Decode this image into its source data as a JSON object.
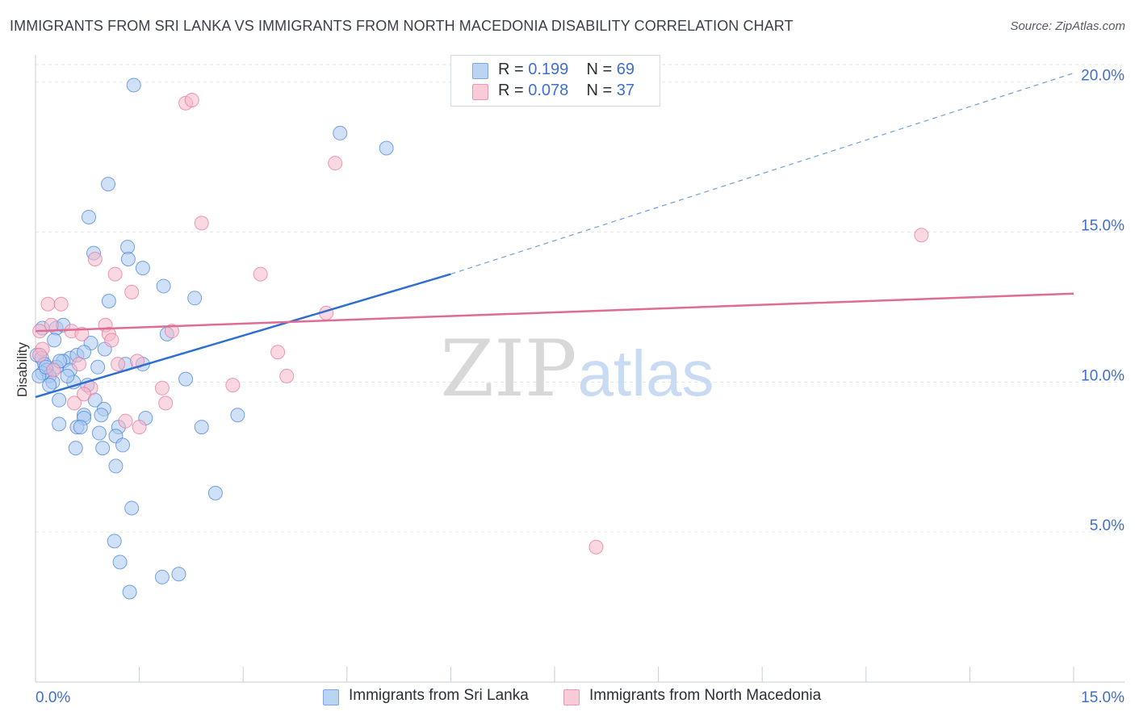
{
  "title": "IMMIGRANTS FROM SRI LANKA VS IMMIGRANTS FROM NORTH MACEDONIA DISABILITY CORRELATION CHART",
  "source": "Source: ZipAtlas.com",
  "watermark": {
    "zip": "ZIP",
    "atlas": "atlas"
  },
  "legend": {
    "rows": [
      {
        "r_label": "R = ",
        "r_value": "0.199",
        "n_label": "N = ",
        "n_value": "69",
        "color": "#a9c8f0"
      },
      {
        "r_label": "R = ",
        "r_value": "0.078",
        "n_label": "N = ",
        "n_value": "37",
        "color": "#f5b8cb"
      }
    ]
  },
  "bottom_legend": [
    {
      "label": "Immigrants from Sri Lanka",
      "color": "#a9c8f0"
    },
    {
      "label": "Immigrants from North Macedonia",
      "color": "#f5b8cb"
    }
  ],
  "chart_data": {
    "type": "scatter",
    "title": "IMMIGRANTS FROM SRI LANKA VS IMMIGRANTS FROM NORTH MACEDONIA DISABILITY CORRELATION CHART",
    "xlabel": "",
    "ylabel": "Disability",
    "xlim": [
      0,
      15
    ],
    "ylim": [
      0,
      20.8
    ],
    "x_tick_labels": [
      {
        "value": 0,
        "label": "0.0%"
      },
      {
        "value": 15,
        "label": "15.0%"
      }
    ],
    "y_tick_labels": [
      {
        "value": 5,
        "label": "5.0%"
      },
      {
        "value": 10,
        "label": "10.0%"
      },
      {
        "value": 15,
        "label": "15.0%"
      },
      {
        "value": 20,
        "label": "20.0%"
      }
    ],
    "x_minor_ticks": [
      0,
      1.5,
      3,
      4.5,
      6,
      7.5,
      9,
      10.5,
      12,
      13.5,
      15
    ],
    "grid": true,
    "legend_position": "top-center",
    "series": [
      {
        "name": "Immigrants from Sri Lanka",
        "color": "#4a86d8",
        "fill": "#a9c8f0",
        "points": [
          [
            1.42,
            19.9
          ],
          [
            4.4,
            18.3
          ],
          [
            5.07,
            17.8
          ],
          [
            1.05,
            16.6
          ],
          [
            0.77,
            15.5
          ],
          [
            0.84,
            14.3
          ],
          [
            1.33,
            14.5
          ],
          [
            1.34,
            14.1
          ],
          [
            1.55,
            13.8
          ],
          [
            1.85,
            13.2
          ],
          [
            2.3,
            12.8
          ],
          [
            1.06,
            12.7
          ],
          [
            0.1,
            11.8
          ],
          [
            0.3,
            11.8
          ],
          [
            0.4,
            11.9
          ],
          [
            1.9,
            11.6
          ],
          [
            0.27,
            11.4
          ],
          [
            0.8,
            11.3
          ],
          [
            1.0,
            11.1
          ],
          [
            0.02,
            10.9
          ],
          [
            0.09,
            10.8
          ],
          [
            0.5,
            10.8
          ],
          [
            0.6,
            10.9
          ],
          [
            0.4,
            10.7
          ],
          [
            0.13,
            10.6
          ],
          [
            1.3,
            10.6
          ],
          [
            1.55,
            10.6
          ],
          [
            0.9,
            10.5
          ],
          [
            0.16,
            10.4
          ],
          [
            0.3,
            10.5
          ],
          [
            0.5,
            10.4
          ],
          [
            0.1,
            10.3
          ],
          [
            0.2,
            10.2
          ],
          [
            0.05,
            10.2
          ],
          [
            2.17,
            10.1
          ],
          [
            0.25,
            10.0
          ],
          [
            0.55,
            10.0
          ],
          [
            0.75,
            9.9
          ],
          [
            0.2,
            9.9
          ],
          [
            0.34,
            9.4
          ],
          [
            0.86,
            9.4
          ],
          [
            0.99,
            9.1
          ],
          [
            0.7,
            8.9
          ],
          [
            0.95,
            8.9
          ],
          [
            0.7,
            8.8
          ],
          [
            1.59,
            8.8
          ],
          [
            2.92,
            8.9
          ],
          [
            0.34,
            8.6
          ],
          [
            0.6,
            8.5
          ],
          [
            0.65,
            8.5
          ],
          [
            1.2,
            8.5
          ],
          [
            2.4,
            8.5
          ],
          [
            0.92,
            8.3
          ],
          [
            1.16,
            8.2
          ],
          [
            0.58,
            7.8
          ],
          [
            0.97,
            7.8
          ],
          [
            1.26,
            7.9
          ],
          [
            1.16,
            7.2
          ],
          [
            2.6,
            6.3
          ],
          [
            1.39,
            5.8
          ],
          [
            1.14,
            4.7
          ],
          [
            1.22,
            4.0
          ],
          [
            1.36,
            3.0
          ],
          [
            1.83,
            3.5
          ],
          [
            2.07,
            3.6
          ],
          [
            0.35,
            10.7
          ],
          [
            0.7,
            11.0
          ],
          [
            0.46,
            10.2
          ],
          [
            0.15,
            10.5
          ]
        ],
        "trend": {
          "x0": 0,
          "y0": 9.5,
          "x1": 6.0,
          "y1": 13.6,
          "dash_x1": 15,
          "dash_y1": 20.3
        }
      },
      {
        "name": "Immigrants from North Macedonia",
        "color": "#e8779d",
        "fill": "#f5b8cb",
        "points": [
          [
            2.17,
            19.3
          ],
          [
            2.26,
            19.4
          ],
          [
            4.33,
            17.3
          ],
          [
            12.8,
            14.9
          ],
          [
            2.4,
            15.3
          ],
          [
            0.86,
            14.1
          ],
          [
            1.15,
            13.6
          ],
          [
            3.25,
            13.6
          ],
          [
            1.39,
            13.0
          ],
          [
            0.18,
            12.6
          ],
          [
            0.37,
            12.6
          ],
          [
            4.2,
            12.3
          ],
          [
            0.23,
            11.9
          ],
          [
            1.01,
            11.9
          ],
          [
            0.52,
            11.7
          ],
          [
            0.67,
            11.6
          ],
          [
            1.06,
            11.6
          ],
          [
            1.97,
            11.7
          ],
          [
            0.06,
            11.7
          ],
          [
            1.1,
            11.4
          ],
          [
            3.5,
            11.0
          ],
          [
            0.1,
            11.1
          ],
          [
            0.06,
            10.9
          ],
          [
            1.47,
            10.7
          ],
          [
            1.19,
            10.6
          ],
          [
            0.63,
            10.6
          ],
          [
            3.63,
            10.2
          ],
          [
            0.26,
            10.4
          ],
          [
            2.85,
            9.9
          ],
          [
            0.8,
            9.8
          ],
          [
            1.83,
            9.8
          ],
          [
            0.7,
            9.6
          ],
          [
            0.56,
            9.3
          ],
          [
            1.88,
            9.3
          ],
          [
            1.3,
            8.7
          ],
          [
            1.5,
            8.5
          ],
          [
            8.1,
            4.5
          ]
        ],
        "trend": {
          "x0": 0,
          "y0": 11.7,
          "x1": 15,
          "y1": 12.95
        }
      }
    ]
  }
}
